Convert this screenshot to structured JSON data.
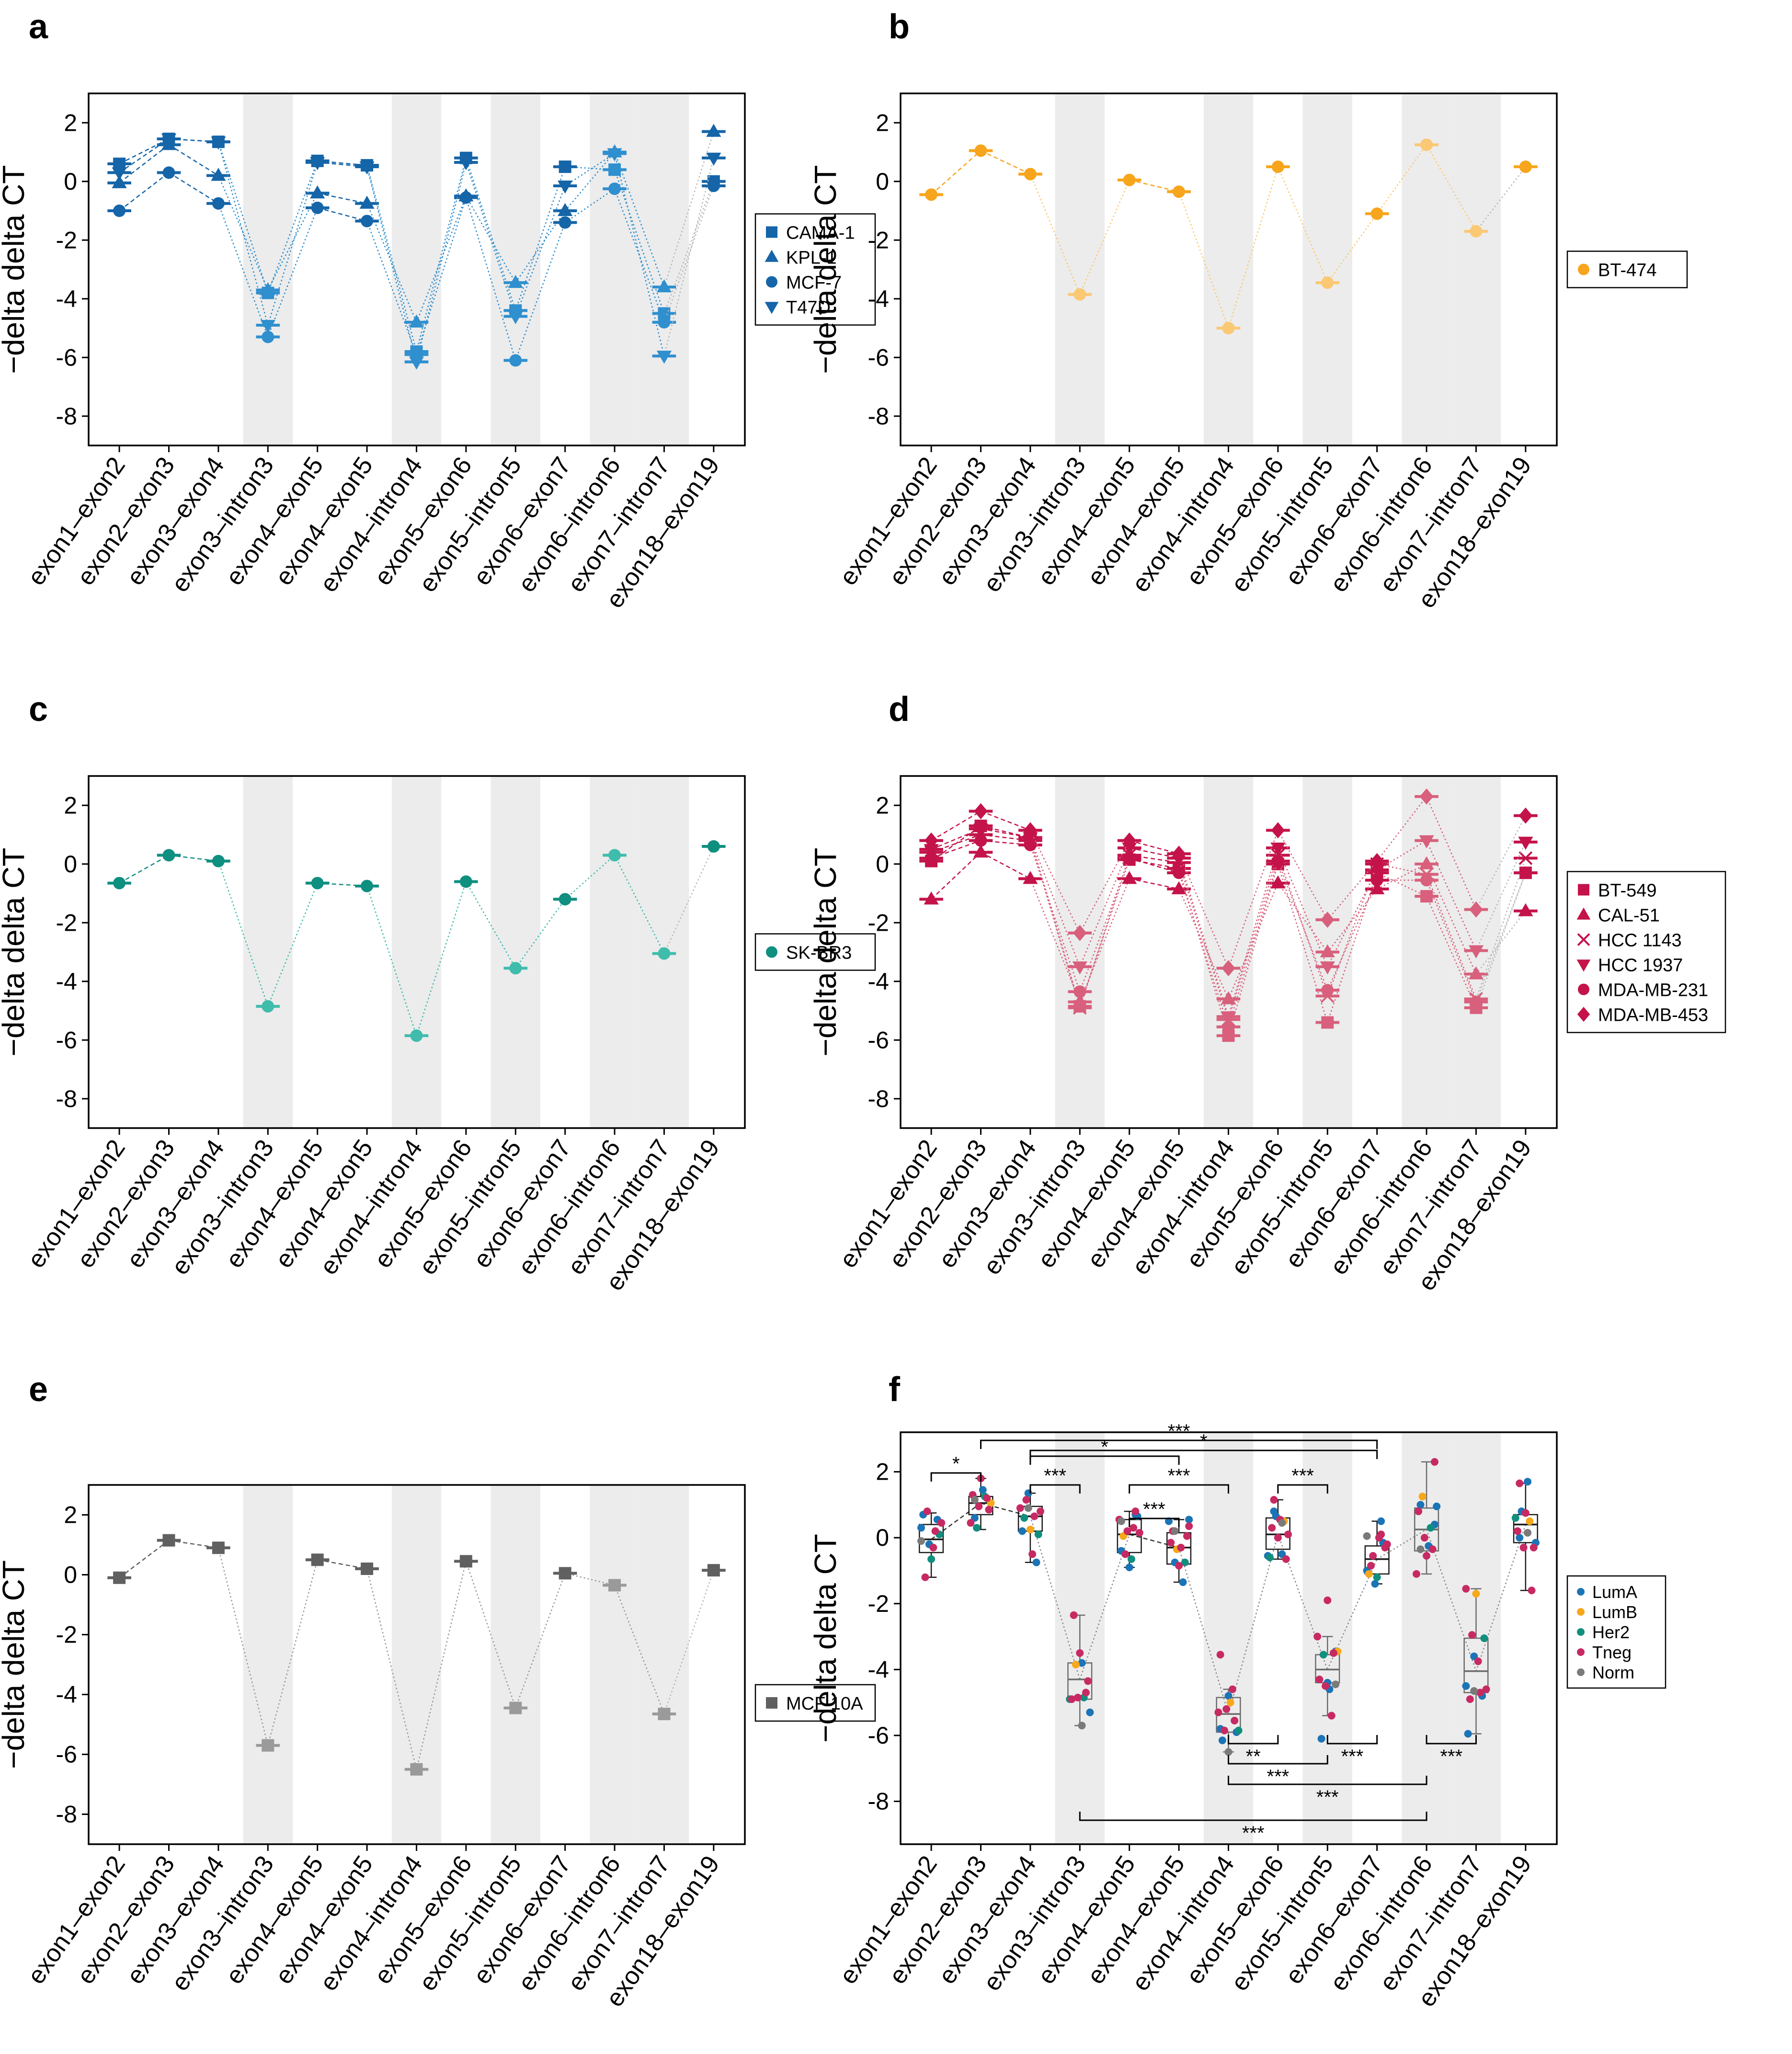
{
  "figure": {
    "xlabels": [
      "exon1–exon2",
      "exon2–exon3",
      "exon3–exon4",
      "exon3–intron3",
      "exon4–exon5",
      "exon4–exon5",
      "exon4–intron4",
      "exon5–exon6",
      "exon5–intron5",
      "exon6–exon7",
      "exon6–intron6",
      "exon7–intron7",
      "exon18–exon19"
    ],
    "ylabel": "−delta delta CT",
    "yticks": [
      "2",
      "0",
      "-2",
      "-4",
      "-6",
      "-8"
    ],
    "shaded_columns": [
      3,
      6,
      8,
      10,
      11
    ]
  },
  "colors": {
    "blue": "#1565a8",
    "blue_light": "#2f8fcf",
    "orange": "#f7a51c",
    "orange_light": "#fbc873",
    "teal": "#0f8f80",
    "teal_light": "#3fbcac",
    "crimson": "#c4134a",
    "pink": "#d8607c",
    "gray": "#606060",
    "gray_light": "#9a9a9a",
    "shade": "#ececec",
    "lumA": "#1b74b6",
    "lumB": "#f6a81a",
    "her2": "#108f7f",
    "tneg": "#c72a63",
    "norm": "#7a7a7a"
  },
  "chart_data": [
    {
      "panel": "a",
      "type": "line",
      "ylim": [
        -9,
        3
      ],
      "ylabel": "−delta delta CT",
      "series": [
        {
          "name": "CAMA-1",
          "marker": "square",
          "values": [
            0.6,
            1.45,
            1.35,
            -3.8,
            0.7,
            0.55,
            -5.8,
            0.8,
            -4.4,
            0.5,
            0.4,
            -4.5,
            0.0
          ]
        },
        {
          "name": "KPL-1",
          "marker": "triangle",
          "values": [
            -0.05,
            1.25,
            0.2,
            -3.7,
            -0.4,
            -0.75,
            -4.8,
            -0.5,
            -3.45,
            -1.0,
            1.0,
            -3.6,
            1.7
          ]
        },
        {
          "name": "MCF-7",
          "marker": "circle",
          "values": [
            -1.0,
            0.3,
            -0.75,
            -5.3,
            -0.9,
            -1.35,
            -5.9,
            -0.55,
            -6.1,
            -1.4,
            -0.25,
            -4.8,
            -0.15
          ]
        },
        {
          "name": "T47D",
          "marker": "triangle-down",
          "values": [
            0.3,
            1.45,
            1.35,
            -4.9,
            0.65,
            0.5,
            -6.15,
            0.65,
            -4.6,
            -0.15,
            0.95,
            -5.95,
            0.8
          ]
        }
      ]
    },
    {
      "panel": "b",
      "type": "line",
      "ylim": [
        -9,
        3
      ],
      "ylabel": "−delta delta CT",
      "series": [
        {
          "name": "BT-474",
          "marker": "circle",
          "values": [
            -0.45,
            1.05,
            0.25,
            -3.85,
            0.05,
            -0.35,
            -5.0,
            0.5,
            -3.45,
            -1.1,
            1.25,
            -1.7,
            0.5
          ]
        }
      ]
    },
    {
      "panel": "c",
      "type": "line",
      "ylim": [
        -9,
        3
      ],
      "ylabel": "−delta delta CT",
      "series": [
        {
          "name": "SK-BR3",
          "marker": "circle",
          "values": [
            -0.65,
            0.3,
            0.1,
            -4.85,
            -0.65,
            -0.75,
            -5.85,
            -0.6,
            -3.55,
            -1.2,
            0.3,
            -3.05,
            0.6
          ]
        }
      ]
    },
    {
      "panel": "d",
      "type": "line",
      "ylim": [
        -9,
        3
      ],
      "ylabel": "−delta delta CT",
      "series": [
        {
          "name": "BT-549",
          "marker": "square",
          "values": [
            0.1,
            1.3,
            0.9,
            -4.85,
            0.15,
            -0.15,
            -5.85,
            0.0,
            -5.4,
            -0.3,
            -1.1,
            -4.9,
            -0.3
          ]
        },
        {
          "name": "CAL-51",
          "marker": "triangle",
          "values": [
            -1.2,
            0.4,
            -0.5,
            -4.7,
            -0.5,
            -0.85,
            -4.6,
            -0.65,
            -3.0,
            -0.85,
            0.0,
            -3.75,
            -1.6
          ]
        },
        {
          "name": "HCC 1143",
          "marker": "x",
          "values": [
            0.4,
            1.0,
            0.8,
            -4.9,
            0.3,
            0.05,
            -5.3,
            0.3,
            -4.5,
            0.0,
            -0.35,
            -4.6,
            0.2
          ]
        },
        {
          "name": "HCC 1937",
          "marker": "triangle-down",
          "values": [
            0.5,
            1.2,
            0.9,
            -3.5,
            0.55,
            0.2,
            -5.2,
            0.55,
            -3.5,
            -0.2,
            0.8,
            -2.95,
            0.75
          ]
        },
        {
          "name": "MDA-MB-231",
          "marker": "circle",
          "values": [
            0.2,
            0.8,
            0.65,
            -4.35,
            0.2,
            -0.3,
            -5.55,
            0.1,
            -4.3,
            -0.55,
            -0.55,
            -4.7,
            -0.3
          ]
        },
        {
          "name": "MDA-MB-453",
          "marker": "diamond",
          "values": [
            0.8,
            1.8,
            1.15,
            -2.35,
            0.8,
            0.35,
            -3.55,
            1.15,
            -1.9,
            0.1,
            2.3,
            -1.55,
            1.65
          ]
        }
      ]
    },
    {
      "panel": "e",
      "type": "line",
      "ylim": [
        -9,
        3
      ],
      "ylabel": "−delta delta CT",
      "series": [
        {
          "name": "MCF 10A",
          "marker": "square",
          "values": [
            -0.1,
            1.15,
            0.9,
            -5.7,
            0.5,
            0.2,
            -6.5,
            0.45,
            -4.45,
            0.05,
            -0.35,
            -4.65,
            0.15
          ]
        }
      ]
    },
    {
      "panel": "f",
      "type": "box",
      "ylim": [
        -9.3,
        3.2
      ],
      "ylabel": "−delta delta CT",
      "boxes": [
        {
          "q1": -0.45,
          "median": -0.05,
          "q3": 0.4,
          "whisker_low": -1.2,
          "whisker_high": 0.75
        },
        {
          "q1": 0.7,
          "median": 1.05,
          "q3": 1.25,
          "whisker_low": 0.25,
          "whisker_high": 1.8
        },
        {
          "q1": 0.2,
          "median": 0.65,
          "q3": 0.95,
          "whisker_low": -0.75,
          "whisker_high": 1.35
        },
        {
          "q1": -4.9,
          "median": -4.3,
          "q3": -3.8,
          "whisker_low": -5.7,
          "whisker_high": -2.35
        },
        {
          "q1": -0.45,
          "median": 0.1,
          "q3": 0.55,
          "whisker_low": -0.9,
          "whisker_high": 0.8
        },
        {
          "q1": -0.8,
          "median": -0.3,
          "q3": 0.15,
          "whisker_low": -1.35,
          "whisker_high": 0.55
        },
        {
          "q1": -5.9,
          "median": -5.35,
          "q3": -4.85,
          "whisker_low": -6.5,
          "whisker_high": -4.6
        },
        {
          "q1": -0.35,
          "median": 0.1,
          "q3": 0.6,
          "whisker_low": -0.65,
          "whisker_high": 1.15
        },
        {
          "q1": -4.4,
          "median": -4.0,
          "q3": -3.55,
          "whisker_low": -5.4,
          "whisker_high": -3.0
        },
        {
          "q1": -1.1,
          "median": -0.65,
          "q3": -0.25,
          "whisker_low": -1.4,
          "whisker_high": 0.5
        },
        {
          "q1": -0.4,
          "median": 0.25,
          "q3": 0.9,
          "whisker_low": -1.1,
          "whisker_high": 2.3
        },
        {
          "q1": -4.7,
          "median": -4.05,
          "q3": -3.05,
          "whisker_low": -5.95,
          "whisker_high": -1.55
        },
        {
          "q1": -0.15,
          "median": 0.4,
          "q3": 0.7,
          "whisker_low": -1.6,
          "whisker_high": 1.65
        }
      ],
      "points": [
        {
          "lumA": [
            0.3,
            -0.2,
            0.55,
            0.7
          ],
          "lumB": [],
          "her2": [
            -0.65,
            0.1
          ],
          "tneg": [
            -1.2,
            -0.3,
            0.45,
            0.8,
            0.2
          ],
          "norm": [
            -0.1
          ]
        },
        {
          "lumA": [
            0.6,
            1.45
          ],
          "lumB": [
            1.05
          ],
          "her2": [
            0.3,
            1.25
          ],
          "tneg": [
            0.45,
            0.95,
            1.2,
            1.3,
            1.8,
            0.85
          ],
          "norm": [
            1.15
          ]
        },
        {
          "lumA": [
            1.35,
            -0.75,
            0.2
          ],
          "lumB": [
            0.25
          ],
          "her2": [
            0.1,
            0.6
          ],
          "tneg": [
            -0.5,
            0.8,
            1.15,
            0.65,
            0.9
          ],
          "norm": [
            0.9
          ]
        },
        {
          "lumA": [
            -3.8,
            -5.3
          ],
          "lumB": [
            -3.85
          ],
          "her2": [
            -4.85,
            -4.9
          ],
          "tneg": [
            -4.85,
            -4.7,
            -4.9,
            -3.5,
            -4.35,
            -2.35
          ],
          "norm": [
            -5.7
          ]
        },
        {
          "lumA": [
            0.7,
            -0.4,
            -0.9,
            0.65
          ],
          "lumB": [
            0.05
          ],
          "her2": [
            -0.65
          ],
          "tneg": [
            0.15,
            -0.5,
            0.3,
            0.55,
            0.2,
            0.8
          ],
          "norm": [
            0.5
          ]
        },
        {
          "lumA": [
            0.55,
            -0.75,
            -1.35,
            0.5
          ],
          "lumB": [
            -0.35
          ],
          "her2": [
            -0.75
          ],
          "tneg": [
            -0.15,
            -0.85,
            0.05,
            0.2,
            -0.3,
            0.35
          ],
          "norm": [
            0.2
          ]
        },
        {
          "lumA": [
            -5.8,
            -4.8,
            -5.9,
            -6.15
          ],
          "lumB": [
            -5.0
          ],
          "her2": [
            -5.85
          ],
          "tneg": [
            -5.85,
            -4.6,
            -5.3,
            -5.2,
            -5.55,
            -3.55
          ],
          "norm": [
            -6.5
          ]
        },
        {
          "lumA": [
            0.8,
            -0.5,
            -0.55,
            0.65
          ],
          "lumB": [
            0.5
          ],
          "her2": [
            -0.6
          ],
          "tneg": [
            0.0,
            -0.65,
            0.3,
            0.55,
            0.1,
            1.15
          ],
          "norm": [
            0.45
          ]
        },
        {
          "lumA": [
            -4.4,
            -3.45,
            -6.1,
            -4.6
          ],
          "lumB": [
            -3.45
          ],
          "her2": [
            -3.55
          ],
          "tneg": [
            -5.4,
            -3.0,
            -4.5,
            -3.5,
            -4.3,
            -1.9
          ],
          "norm": [
            -4.45
          ]
        },
        {
          "lumA": [
            0.5,
            -1.0,
            -1.4,
            -0.15
          ],
          "lumB": [
            -1.1
          ],
          "her2": [
            -1.2
          ],
          "tneg": [
            -0.3,
            -0.85,
            0.0,
            -0.2,
            -0.55,
            0.1
          ],
          "norm": [
            0.05
          ]
        },
        {
          "lumA": [
            0.4,
            1.0,
            -0.25,
            0.95
          ],
          "lumB": [
            1.25
          ],
          "her2": [
            0.3
          ],
          "tneg": [
            -1.1,
            0.0,
            -0.35,
            0.8,
            -0.55,
            2.3
          ],
          "norm": [
            -0.35
          ]
        },
        {
          "lumA": [
            -4.5,
            -3.6,
            -4.8,
            -5.95
          ],
          "lumB": [
            -1.7
          ],
          "her2": [
            -3.05
          ],
          "tneg": [
            -4.9,
            -3.75,
            -4.6,
            -2.95,
            -4.7,
            -1.55
          ],
          "norm": [
            -4.65
          ]
        },
        {
          "lumA": [
            0.0,
            1.7,
            -0.15,
            0.8
          ],
          "lumB": [
            0.5
          ],
          "her2": [
            0.6
          ],
          "tneg": [
            -0.3,
            -1.6,
            0.2,
            0.75,
            -0.3,
            1.65
          ],
          "norm": [
            0.15
          ]
        }
      ],
      "significance_above": [
        {
          "from": 0,
          "to": 1,
          "label": "*"
        },
        {
          "from": 2,
          "to": 3,
          "label": "***"
        },
        {
          "from": 4,
          "to": 6,
          "label": "***"
        },
        {
          "from": 7,
          "to": 8,
          "label": "***"
        },
        {
          "from": 4,
          "to": 5,
          "label": "***"
        },
        {
          "from": 2,
          "to": 5,
          "label": "*"
        },
        {
          "from": 2,
          "to": 9,
          "label": "*"
        },
        {
          "from": 1,
          "to": 9,
          "label": "***"
        }
      ],
      "significance_below": [
        {
          "from": 6,
          "to": 7,
          "label": "**"
        },
        {
          "from": 8,
          "to": 9,
          "label": "***"
        },
        {
          "from": 10,
          "to": 11,
          "label": "***"
        },
        {
          "from": 6,
          "to": 8,
          "label": "***"
        },
        {
          "from": 6,
          "to": 10,
          "label": "***"
        },
        {
          "from": 3,
          "to": 10,
          "label": "***"
        }
      ],
      "legend": [
        {
          "key": "lumA",
          "name": "LumA"
        },
        {
          "key": "lumB",
          "name": "LumB"
        },
        {
          "key": "her2",
          "name": "Her2"
        },
        {
          "key": "tneg",
          "name": "Tneg"
        },
        {
          "key": "norm",
          "name": "Norm"
        }
      ]
    }
  ]
}
